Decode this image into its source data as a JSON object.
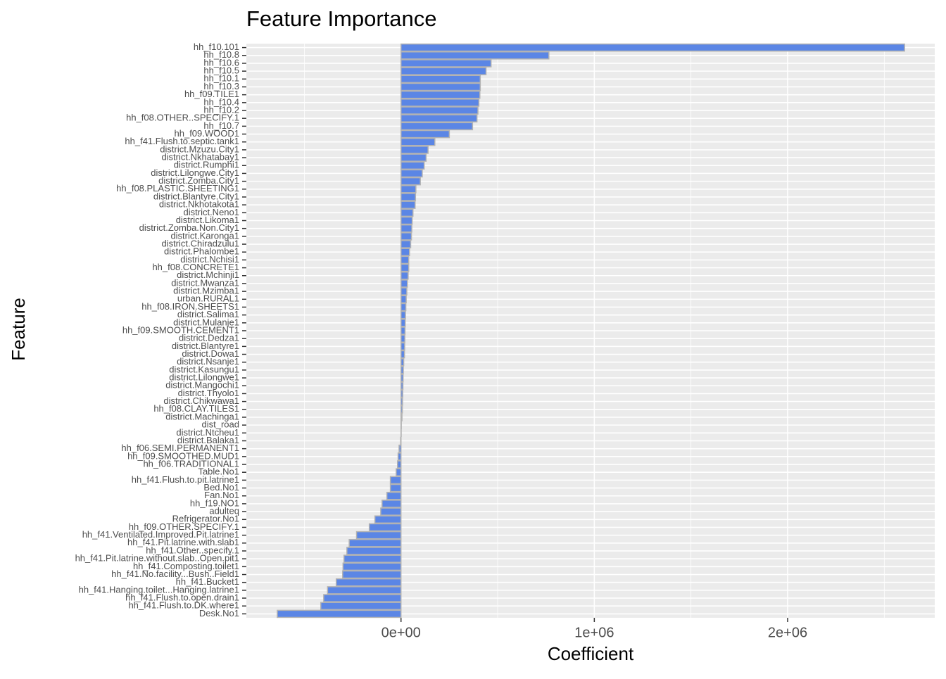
{
  "chart_data": {
    "type": "barh",
    "title": "Feature Importance",
    "x_label": "Coefficient",
    "y_label": "Feature",
    "categories": [
      "hh_f10.101",
      "hh_f10.8",
      "hh_f10.6",
      "hh_f10.5",
      "hh_f10.1",
      "hh_f10.3",
      "hh_f09.TILE1",
      "hh_f10.4",
      "hh_f10.2",
      "hh_f08.OTHER..SPECIFY.1",
      "hh_f10.7",
      "hh_f09.WOOD1",
      "hh_f41.Flush.to.septic.tank1",
      "district.Mzuzu.City1",
      "district.Nkhatabay1",
      "district.Rumphi1",
      "district.Lilongwe.City1",
      "district.Zomba.City1",
      "hh_f08.PLASTIC.SHEETING1",
      "district.Blantyre.City1",
      "district.Nkhotakota1",
      "district.Neno1",
      "district.Likoma1",
      "district.Zomba.Non.City1",
      "district.Karonga1",
      "district.Chiradzulu1",
      "district.Phalombe1",
      "district.Nchisi1",
      "hh_f08.CONCRETE1",
      "district.Mchinji1",
      "district.Mwanza1",
      "district.Mzimba1",
      "urban.RURAL1",
      "hh_f08.IRON.SHEETS1",
      "district.Salima1",
      "district.Mulanje1",
      "hh_f09.SMOOTH.CEMENT1",
      "district.Dedza1",
      "district.Blantyre1",
      "district.Dowa1",
      "district.Nsanje1",
      "district.Kasungu1",
      "district.Lilongwe1",
      "district.Mangochi1",
      "district.Thyolo1",
      "district.Chikwawa1",
      "hh_f08.CLAY.TILES1",
      "district.Machinga1",
      "dist_road",
      "district.Ntcheu1",
      "district.Balaka1",
      "hh_f06.SEMI.PERMANENT1",
      "hh_f09.SMOOTHED.MUD1",
      "hh_f06.TRADITIONAL1",
      "Table.No1",
      "hh_f41.Flush.to.pit.latrine1",
      "Bed.No1",
      "Fan.No1",
      "hh_f19.NO1",
      "adulteq",
      "Refrigerator.No1",
      "hh_f09.OTHER.SPECIFY.1",
      "hh_f41.Ventilated.Improved.Pit.latrine1",
      "hh_f41.Pit.latrine.with.slab1",
      "hh_f41.Other..specify.1",
      "hh_f41.Pit.latrine.without.slab..Open.pit1",
      "hh_f41.Composting.toilet1",
      "hh_f41.No.facility...Bush..Field1",
      "hh_f41.Bucket1",
      "hh_f41.Hanging.toilet...Hanging.latrine1",
      "hh_f41.Flush.to.open.drain1",
      "hh_f41.Flush.to.DK.where1",
      "Desk.No1"
    ],
    "values": [
      2605000,
      765000,
      466000,
      440000,
      410000,
      410000,
      408000,
      403000,
      398000,
      393000,
      370000,
      250000,
      175000,
      140000,
      130000,
      120000,
      110000,
      100000,
      77000,
      75000,
      73000,
      62000,
      58000,
      56000,
      54000,
      50000,
      44000,
      40000,
      40000,
      37000,
      33000,
      30000,
      27000,
      25000,
      23000,
      22000,
      21000,
      20000,
      19000,
      18000,
      14000,
      12000,
      11000,
      10000,
      9000,
      8000,
      7000,
      5000,
      1500,
      1000,
      -2000,
      -10000,
      -15000,
      -18000,
      -25000,
      -55000,
      -55000,
      -73000,
      -98000,
      -105000,
      -135000,
      -164000,
      -230000,
      -268000,
      -280000,
      -295000,
      -300000,
      -302000,
      -335000,
      -380000,
      -400000,
      -415000,
      -640000
    ],
    "color": "#5b86e5",
    "edge_color": "#b3b3b3",
    "xlim": [
      -800000,
      2761000
    ],
    "xticks": [
      {
        "value": 0,
        "label": "0e+00"
      },
      {
        "value": 1000000,
        "label": "1e+06"
      },
      {
        "value": 2000000,
        "label": "2e+06"
      }
    ],
    "minor_xticks": [
      -500000,
      500000,
      1500000,
      2500000
    ],
    "grid": true
  }
}
